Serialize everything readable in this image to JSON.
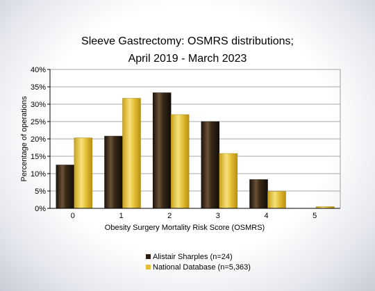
{
  "chart_data": {
    "type": "bar",
    "title_lines": [
      "Sleeve Gastrectomy: OSMRS distributions;",
      "April 2019 - March 2023"
    ],
    "xlabel": "Obesity Surgery Mortality Risk Score (OSMRS)",
    "ylabel": "Percentage of operations",
    "categories": [
      "0",
      "1",
      "2",
      "3",
      "4",
      "5"
    ],
    "ylim": [
      0,
      40
    ],
    "y_ticks": [
      "0%",
      "5%",
      "10%",
      "15%",
      "20%",
      "25%",
      "30%",
      "35%",
      "40%"
    ],
    "grid": true,
    "legend_position": "bottom",
    "series": [
      {
        "name": "Alistair Sharples (n=24)",
        "values": [
          12.5,
          20.8,
          33.3,
          25.0,
          8.3,
          0.0
        ],
        "color": "#3a2a1a"
      },
      {
        "name": "National Database (n=5,363)",
        "values": [
          20.3,
          31.7,
          27.0,
          15.8,
          4.9,
          0.5
        ],
        "color": "#e8c53a"
      }
    ]
  }
}
